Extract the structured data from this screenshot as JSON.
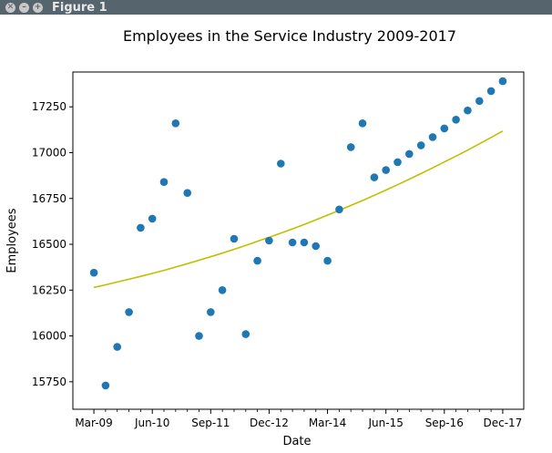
{
  "window": {
    "title": "Figure 1",
    "buttons": [
      {
        "name": "close",
        "glyph": "✕"
      },
      {
        "name": "minimize",
        "glyph": "–"
      },
      {
        "name": "maximize",
        "glyph": "+"
      }
    ]
  },
  "colors": {
    "titlebar": "#56646d",
    "points": "#1f77b4",
    "fit_line": "#bfbf00"
  },
  "chart_data": {
    "type": "scatter",
    "title": "Employees in the Service Industry 2009-2017",
    "xlabel": "Date",
    "ylabel": "Employees",
    "x_ticks": [
      {
        "q": 0,
        "label": "Mar-09"
      },
      {
        "q": 5,
        "label": "Jun-10"
      },
      {
        "q": 10,
        "label": "Sep-11"
      },
      {
        "q": 15,
        "label": "Dec-12"
      },
      {
        "q": 20,
        "label": "Mar-14"
      },
      {
        "q": 25,
        "label": "Jun-15"
      },
      {
        "q": 30,
        "label": "Sep-16"
      },
      {
        "q": 35,
        "label": "Dec-17"
      }
    ],
    "x_minor_ticks": [
      1,
      2,
      3,
      4,
      6,
      7,
      8,
      9,
      11,
      12,
      13,
      14,
      16,
      17,
      18,
      19,
      21,
      22,
      23,
      24,
      26,
      27,
      28,
      29,
      31,
      32,
      33,
      34
    ],
    "xlim": [
      -1.8,
      36.8
    ],
    "y_ticks": [
      15750,
      16000,
      16250,
      16500,
      16750,
      17000,
      17250
    ],
    "ylim": [
      15600,
      17440
    ],
    "grid": false,
    "series": [
      {
        "type": "scatter",
        "x": [
          0,
          1,
          2,
          3,
          4,
          5,
          6,
          7,
          8,
          9,
          10,
          11,
          12,
          13,
          14,
          15,
          16,
          17,
          18,
          19,
          20,
          21,
          22,
          23,
          24,
          25,
          26,
          27,
          28,
          29,
          30,
          31,
          32,
          33,
          34,
          35
        ],
        "y": [
          16345,
          15730,
          15940,
          16130,
          16590,
          16640,
          16840,
          17160,
          16780,
          16000,
          16130,
          16250,
          16530,
          16010,
          16410,
          16520,
          16940,
          16510,
          16510,
          16490,
          16410,
          16690,
          17030,
          17160,
          16865,
          16905,
          16948,
          16993,
          17040,
          17085,
          17132,
          17180,
          17230,
          17282,
          17336,
          17390
        ]
      },
      {
        "type": "line",
        "x": [
          0,
          1,
          2,
          3,
          4,
          5,
          6,
          7,
          8,
          9,
          10,
          11,
          12,
          13,
          14,
          15,
          16,
          17,
          18,
          19,
          20,
          21,
          22,
          23,
          24,
          25,
          26,
          27,
          28,
          29,
          30,
          31,
          32,
          33,
          34,
          35
        ],
        "y": [
          16265,
          16279,
          16294,
          16309,
          16325,
          16341,
          16358,
          16376,
          16394,
          16413,
          16432,
          16452,
          16473,
          16494,
          16516,
          16538,
          16561,
          16584,
          16608,
          16633,
          16659,
          16685,
          16712,
          16739,
          16767,
          16796,
          16825,
          16855,
          16886,
          16917,
          16949,
          16981,
          17014,
          17048,
          17083,
          17118
        ]
      }
    ]
  }
}
